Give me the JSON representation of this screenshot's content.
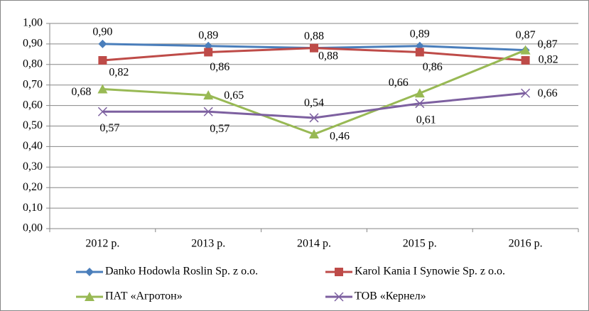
{
  "chart_data": {
    "type": "line",
    "categories": [
      "2012 р.",
      "2013 р.",
      "2014 р.",
      "2015 р.",
      "2016 р."
    ],
    "ylim": [
      0,
      1
    ],
    "yticks": [
      {
        "value": 0,
        "label": "0,00"
      },
      {
        "value": 0.1,
        "label": "0,10"
      },
      {
        "value": 0.2,
        "label": "0,20"
      },
      {
        "value": 0.3,
        "label": "0,30"
      },
      {
        "value": 0.4,
        "label": "0,40"
      },
      {
        "value": 0.5,
        "label": "0,50"
      },
      {
        "value": 0.6,
        "label": "0,60"
      },
      {
        "value": 0.7,
        "label": "0,70"
      },
      {
        "value": 0.8,
        "label": "0,80"
      },
      {
        "value": 0.9,
        "label": "0,90"
      },
      {
        "value": 1,
        "label": "1,00"
      }
    ],
    "grid": true,
    "series": [
      {
        "name": "Danko Hodowla Roslin Sp. z o.o.",
        "color": "#4a7ebb",
        "marker": "diamond",
        "values": [
          0.9,
          0.89,
          0.88,
          0.89,
          0.87
        ],
        "value_labels": [
          "0,90",
          "0,89",
          "0,88",
          "0,89",
          "0,87"
        ]
      },
      {
        "name": "Karol Kania I Synowie Sp. z o.o.",
        "color": "#be4b48",
        "marker": "square",
        "values": [
          0.82,
          0.86,
          0.88,
          0.86,
          0.82
        ],
        "value_labels": [
          "0,82",
          "0,86",
          "0,88",
          "0,86",
          "0,82"
        ]
      },
      {
        "name": "ПАТ «Агротон»",
        "color": "#98b954",
        "marker": "triangle",
        "values": [
          0.68,
          0.65,
          0.46,
          0.66,
          0.87
        ],
        "value_labels": [
          "0,68",
          "0,65",
          "0,46",
          "0,66",
          "0,87"
        ]
      },
      {
        "name": "ТОВ «Кернел»",
        "color": "#7d60a0",
        "marker": "x",
        "values": [
          0.57,
          0.57,
          0.54,
          0.61,
          0.66
        ],
        "value_labels": [
          "0,57",
          "0,57",
          "0,54",
          "0,61",
          "0,66"
        ]
      }
    ]
  }
}
